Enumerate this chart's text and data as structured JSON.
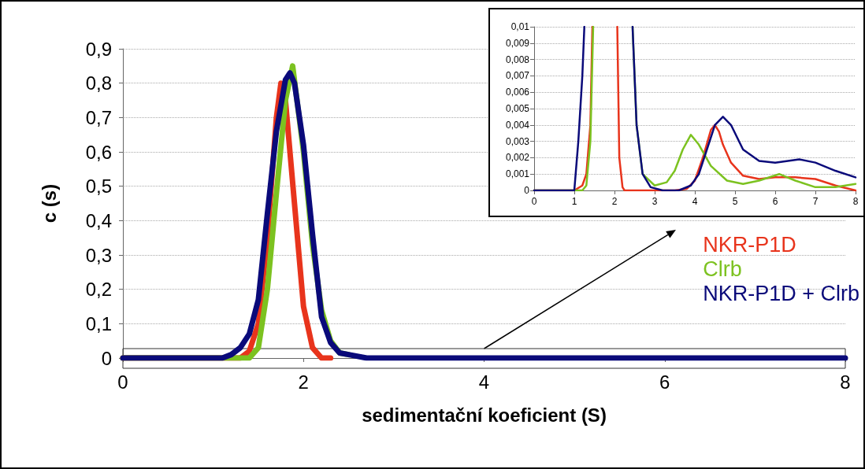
{
  "chart_data": [
    {
      "type": "line",
      "xlabel": "sedimentační koeficient (S)",
      "ylabel": "c (s)",
      "xlim": [
        0,
        8
      ],
      "xticks": [
        0,
        2,
        4,
        6,
        8
      ],
      "ylim": [
        0,
        0.9
      ],
      "yticks": [
        0,
        {
          "value": 0.1,
          "label": "0,1"
        },
        {
          "value": 0.2,
          "label": "0,2"
        },
        {
          "value": 0.3,
          "label": "0,3"
        },
        {
          "value": 0.4,
          "label": "0,4"
        },
        {
          "value": 0.5,
          "label": "0,5"
        },
        {
          "value": 0.6,
          "label": "0,6"
        },
        {
          "value": 0.7,
          "label": "0,7"
        },
        {
          "value": 0.8,
          "label": "0,8"
        },
        {
          "value": 0.9,
          "label": "0,9"
        }
      ],
      "grid": "y",
      "legend": "right",
      "marker": "none",
      "line_style": "solid",
      "series": [
        {
          "name": "NKR-P1D",
          "color": "#e8341c",
          "x": [
            0,
            1.0,
            1.3,
            1.4,
            1.5,
            1.6,
            1.7,
            1.75,
            1.8,
            1.9,
            2.0,
            2.1,
            2.2,
            2.3
          ],
          "values": [
            0,
            0,
            0,
            0.02,
            0.1,
            0.35,
            0.7,
            0.8,
            0.75,
            0.45,
            0.15,
            0.03,
            0,
            0
          ]
        },
        {
          "name": "Clrb",
          "color": "#7cc220",
          "x": [
            0,
            1.2,
            1.4,
            1.5,
            1.6,
            1.7,
            1.8,
            1.88,
            2.0,
            2.1,
            2.2,
            2.3,
            2.4,
            2.5
          ],
          "values": [
            0,
            0,
            0,
            0.03,
            0.2,
            0.48,
            0.75,
            0.85,
            0.6,
            0.33,
            0.14,
            0.05,
            0.015,
            0.01
          ]
        },
        {
          "name": "NKR-P1D + Clrb",
          "color": "#0a0a7a",
          "x": [
            0,
            1.0,
            1.1,
            1.2,
            1.3,
            1.4,
            1.5,
            1.6,
            1.7,
            1.8,
            1.85,
            1.9,
            2.0,
            2.1,
            2.2,
            2.3,
            2.4,
            2.5,
            2.7,
            8
          ],
          "values": [
            0,
            0,
            0,
            0.01,
            0.03,
            0.07,
            0.17,
            0.42,
            0.66,
            0.81,
            0.83,
            0.8,
            0.62,
            0.36,
            0.12,
            0.045,
            0.015,
            0.01,
            0,
            0
          ]
        }
      ]
    },
    {
      "type": "line",
      "xlim": [
        0,
        8
      ],
      "xticks": [
        0,
        1,
        2,
        3,
        4,
        5,
        6,
        7,
        8
      ],
      "ylim": [
        0,
        0.01
      ],
      "yticks": [
        0,
        {
          "value": 0.001,
          "label": "0,001"
        },
        {
          "value": 0.002,
          "label": "0,002"
        },
        {
          "value": 0.003,
          "label": "0,003"
        },
        {
          "value": 0.004,
          "label": "0,004"
        },
        {
          "value": 0.005,
          "label": "0,005"
        },
        {
          "value": 0.006,
          "label": "0,006"
        },
        {
          "value": 0.007,
          "label": "0,007"
        },
        {
          "value": 0.008,
          "label": "0,008"
        },
        {
          "value": 0.009,
          "label": "0,009"
        },
        {
          "value": 0.01,
          "label": "0,01"
        }
      ],
      "grid": "y",
      "marker": "none",
      "line_style": "solid",
      "series": [
        {
          "color": "#e8341c",
          "x": [
            0,
            1.0,
            1.2,
            1.3,
            1.4,
            1.45,
            1.75,
            2.07,
            2.12,
            2.2,
            2.25,
            3,
            3.5,
            3.8,
            4.0,
            4.2,
            4.4,
            4.5,
            4.6,
            4.7,
            4.9,
            5.2,
            5.6,
            6.0,
            6.5,
            7.0,
            7.5,
            8
          ],
          "values": [
            0,
            0,
            0.0003,
            0.001,
            0.004,
            0.01,
            null,
            0.01,
            0.002,
            0.0002,
            0,
            0,
            0,
            0.0001,
            0.0006,
            0.002,
            0.0037,
            0.004,
            0.0036,
            0.0028,
            0.0017,
            0.0009,
            0.0007,
            0.0008,
            0.0008,
            0.0007,
            0.0003,
            0
          ]
        },
        {
          "color": "#7cc220",
          "x": [
            0,
            1.2,
            1.3,
            1.4,
            1.47,
            1.9,
            2.45,
            2.55,
            2.7,
            3.0,
            3.3,
            3.5,
            3.7,
            3.9,
            4.1,
            4.4,
            4.8,
            5.2,
            5.6,
            6.1,
            6.5,
            7.0,
            7.5,
            8
          ],
          "values": [
            0,
            0,
            0.0003,
            0.003,
            0.01,
            null,
            0.01,
            0.004,
            0.001,
            0.0003,
            0.0005,
            0.0012,
            0.0025,
            0.0034,
            0.0028,
            0.0015,
            0.0006,
            0.0004,
            0.0006,
            0.001,
            0.0006,
            0.0002,
            0.0002,
            0.0004
          ]
        },
        {
          "color": "#0a0a7a",
          "x": [
            0,
            1.0,
            1.1,
            1.2,
            1.25,
            1.85,
            2.45,
            2.55,
            2.7,
            2.9,
            3.2,
            3.6,
            3.9,
            4.1,
            4.3,
            4.5,
            4.7,
            4.9,
            5.2,
            5.6,
            6.0,
            6.6,
            7.0,
            7.5,
            8
          ],
          "values": [
            0,
            0,
            0.003,
            0.007,
            0.01,
            null,
            0.01,
            0.004,
            0.001,
            0.0002,
            0,
            0,
            0.0003,
            0.001,
            0.0025,
            0.004,
            0.0045,
            0.004,
            0.0025,
            0.0018,
            0.0017,
            0.0019,
            0.0017,
            0.0012,
            0.0008
          ]
        }
      ]
    }
  ]
}
